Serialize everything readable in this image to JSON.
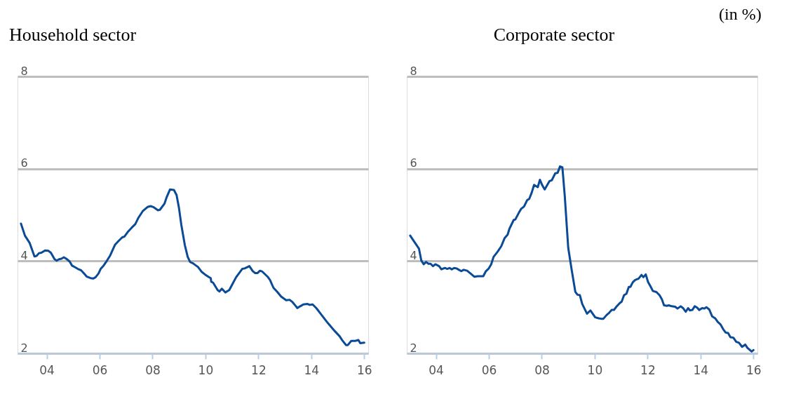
{
  "chart_data": [
    {
      "type": "line",
      "title": "Household sector",
      "x": [
        2003.03,
        2003.18,
        2003.36,
        2003.54,
        2003.62,
        2003.71,
        2003.8,
        2003.94,
        2004.07,
        2004.16,
        2004.3,
        2004.38,
        2004.47,
        2004.56,
        2004.65,
        2004.74,
        2004.87,
        2004.96,
        2005.09,
        2005.21,
        2005.3,
        2005.4,
        2005.52,
        2005.66,
        2005.76,
        2005.85,
        2005.96,
        2006.04,
        2006.15,
        2006.27,
        2006.4,
        2006.58,
        2006.71,
        2006.85,
        2006.94,
        2007.08,
        2007.21,
        2007.35,
        2007.47,
        2007.63,
        2007.81,
        2007.93,
        2008.03,
        2008.21,
        2008.28,
        2008.45,
        2008.54,
        2008.66,
        2008.81,
        2008.91,
        2009.0,
        2009.09,
        2009.22,
        2009.33,
        2009.42,
        2009.53,
        2009.72,
        2009.85,
        2009.98,
        2010.11,
        2010.2,
        2010.22,
        2010.29,
        2010.46,
        2010.53,
        2010.62,
        2010.75,
        2010.9,
        2011.02,
        2011.16,
        2011.39,
        2011.48,
        2011.66,
        2011.79,
        2011.88,
        2011.97,
        2012.06,
        2012.15,
        2012.35,
        2012.44,
        2012.57,
        2012.7,
        2012.86,
        2013.05,
        2013.18,
        2013.29,
        2013.42,
        2013.47,
        2013.58,
        2013.7,
        2013.86,
        2013.94,
        2014.05,
        2014.19,
        2014.35,
        2014.62,
        2014.89,
        2015.07,
        2015.16,
        2015.31,
        2015.38,
        2015.51,
        2015.66,
        2015.78,
        2015.85,
        2016.0
      ],
      "series": [
        {
          "color": "#0b4a96",
          "values": [
            4.81,
            4.55,
            4.39,
            4.1,
            4.11,
            4.17,
            4.18,
            4.23,
            4.22,
            4.18,
            4.04,
            4.01,
            4.04,
            4.05,
            4.08,
            4.05,
            3.99,
            3.9,
            3.86,
            3.82,
            3.8,
            3.74,
            3.66,
            3.63,
            3.62,
            3.65,
            3.73,
            3.83,
            3.9,
            4.0,
            4.12,
            4.35,
            4.43,
            4.51,
            4.53,
            4.64,
            4.72,
            4.8,
            4.94,
            5.08,
            5.17,
            5.19,
            5.17,
            5.1,
            5.11,
            5.24,
            5.39,
            5.55,
            5.54,
            5.43,
            5.15,
            4.78,
            4.35,
            4.09,
            3.98,
            3.95,
            3.87,
            3.77,
            3.71,
            3.66,
            3.63,
            3.55,
            3.53,
            3.37,
            3.34,
            3.4,
            3.32,
            3.37,
            3.5,
            3.65,
            3.83,
            3.84,
            3.89,
            3.78,
            3.74,
            3.74,
            3.79,
            3.77,
            3.66,
            3.59,
            3.42,
            3.34,
            3.23,
            3.15,
            3.16,
            3.11,
            3.02,
            2.98,
            3.02,
            3.06,
            3.07,
            3.05,
            3.06,
            2.98,
            2.86,
            2.66,
            2.48,
            2.37,
            2.29,
            2.18,
            2.18,
            2.27,
            2.27,
            2.29,
            2.22,
            2.23
          ]
        }
      ],
      "xlim": [
        2002.9,
        2016.15
      ],
      "ylim": [
        2,
        8
      ],
      "xticks": [
        {
          "value": 2004,
          "label": "04"
        },
        {
          "value": 2006,
          "label": "06"
        },
        {
          "value": 2008,
          "label": "08"
        },
        {
          "value": 2010,
          "label": "10"
        },
        {
          "value": 2012,
          "label": "12"
        },
        {
          "value": 2014,
          "label": "14"
        },
        {
          "value": 2016,
          "label": "16"
        }
      ],
      "yticks": [
        2,
        4,
        6,
        8
      ],
      "grid": "y",
      "marker": "none",
      "line_style": "solid"
    },
    {
      "type": "line",
      "title": "Corporate sector",
      "annotations": [
        "(in %)"
      ],
      "x": [
        2003.03,
        2003.18,
        2003.36,
        2003.45,
        2003.54,
        2003.63,
        2003.72,
        2003.8,
        2003.89,
        2003.98,
        2004.12,
        2004.21,
        2004.34,
        2004.43,
        2004.52,
        2004.6,
        2004.69,
        2004.78,
        2004.87,
        2004.96,
        2005.05,
        2005.18,
        2005.31,
        2005.45,
        2005.58,
        2005.67,
        2005.79,
        2005.89,
        2006.0,
        2006.09,
        2006.18,
        2006.33,
        2006.47,
        2006.6,
        2006.71,
        2006.78,
        2006.94,
        2007.0,
        2007.13,
        2007.22,
        2007.33,
        2007.45,
        2007.53,
        2007.62,
        2007.71,
        2007.85,
        2007.93,
        2008.02,
        2008.11,
        2008.29,
        2008.38,
        2008.51,
        2008.6,
        2008.69,
        2008.78,
        2008.87,
        2009.0,
        2009.13,
        2009.27,
        2009.35,
        2009.44,
        2009.53,
        2009.71,
        2009.84,
        2010.02,
        2010.15,
        2010.24,
        2010.33,
        2010.45,
        2010.55,
        2010.64,
        2010.73,
        2010.82,
        2010.95,
        2011.02,
        2011.11,
        2011.2,
        2011.29,
        2011.35,
        2011.44,
        2011.53,
        2011.66,
        2011.77,
        2011.84,
        2011.93,
        2012.02,
        2012.11,
        2012.2,
        2012.33,
        2012.45,
        2012.54,
        2012.62,
        2012.73,
        2012.8,
        2012.91,
        2013.04,
        2013.13,
        2013.25,
        2013.34,
        2013.44,
        2013.53,
        2013.6,
        2013.69,
        2013.78,
        2013.87,
        2013.95,
        2014.06,
        2014.15,
        2014.22,
        2014.33,
        2014.44,
        2014.55,
        2014.65,
        2014.75,
        2014.86,
        2014.95,
        2015.04,
        2015.13,
        2015.24,
        2015.35,
        2015.45,
        2015.57,
        2015.69,
        2015.77,
        2015.93,
        2016.0
      ],
      "series": [
        {
          "color": "#0b4a96",
          "values": [
            4.55,
            4.42,
            4.27,
            4.01,
            3.93,
            3.98,
            3.94,
            3.94,
            3.89,
            3.93,
            3.89,
            3.82,
            3.85,
            3.83,
            3.85,
            3.82,
            3.85,
            3.84,
            3.81,
            3.78,
            3.81,
            3.79,
            3.73,
            3.66,
            3.67,
            3.67,
            3.67,
            3.78,
            3.84,
            3.93,
            4.09,
            4.2,
            4.32,
            4.5,
            4.57,
            4.7,
            4.89,
            4.9,
            5.04,
            5.13,
            5.18,
            5.32,
            5.35,
            5.48,
            5.65,
            5.6,
            5.76,
            5.64,
            5.55,
            5.73,
            5.75,
            5.9,
            5.91,
            6.05,
            6.03,
            5.41,
            4.29,
            3.81,
            3.33,
            3.27,
            3.26,
            3.07,
            2.86,
            2.93,
            2.78,
            2.76,
            2.75,
            2.75,
            2.83,
            2.88,
            2.94,
            2.94,
            3.01,
            3.09,
            3.12,
            3.26,
            3.29,
            3.44,
            3.44,
            3.54,
            3.59,
            3.62,
            3.7,
            3.65,
            3.71,
            3.54,
            3.45,
            3.35,
            3.33,
            3.26,
            3.17,
            3.04,
            3.03,
            3.04,
            3.02,
            3.01,
            2.97,
            3.02,
            2.98,
            2.9,
            2.98,
            2.93,
            2.94,
            3.02,
            2.99,
            2.94,
            2.98,
            2.97,
            3.0,
            2.95,
            2.8,
            2.76,
            2.68,
            2.63,
            2.52,
            2.45,
            2.44,
            2.35,
            2.34,
            2.25,
            2.23,
            2.14,
            2.19,
            2.12,
            2.04,
            2.07
          ]
        }
      ],
      "xlim": [
        2002.9,
        2016.15
      ],
      "ylim": [
        2,
        8
      ],
      "xticks": [
        {
          "value": 2004,
          "label": "04"
        },
        {
          "value": 2006,
          "label": "06"
        },
        {
          "value": 2008,
          "label": "08"
        },
        {
          "value": 2010,
          "label": "10"
        },
        {
          "value": 2012,
          "label": "12"
        },
        {
          "value": 2014,
          "label": "14"
        },
        {
          "value": 2016,
          "label": "16"
        }
      ],
      "yticks": [
        2,
        4,
        6,
        8
      ],
      "grid": "y",
      "marker": "none",
      "line_style": "solid"
    }
  ]
}
